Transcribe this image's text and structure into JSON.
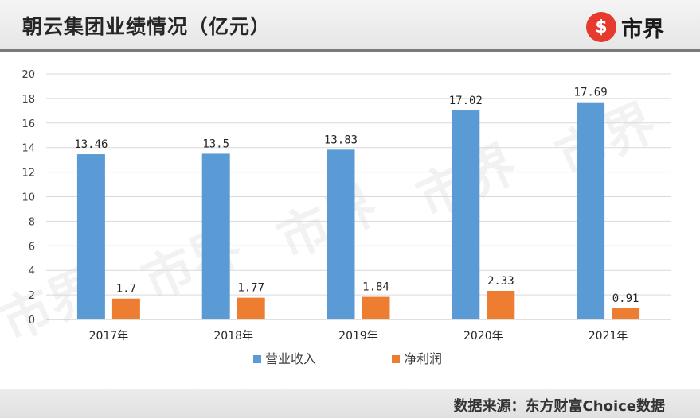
{
  "header": {
    "title": "朝云集团业绩情况（亿元）",
    "logo_icon": "shijie-logo-icon",
    "logo_text": "市界"
  },
  "colors": {
    "series_1": "#5b9bd5",
    "series_2": "#ed7d31",
    "logo_red": "#e63a2e"
  },
  "chart_data": {
    "type": "bar",
    "categories": [
      "2017年",
      "2018年",
      "2019年",
      "2020年",
      "2021年"
    ],
    "series": [
      {
        "name": "营业收入",
        "values": [
          13.46,
          13.5,
          13.83,
          17.02,
          17.69
        ],
        "labels": [
          "13.46",
          "13.5",
          "13.83",
          "17.02",
          "17.69"
        ]
      },
      {
        "name": "净利润",
        "values": [
          1.7,
          1.77,
          1.84,
          2.33,
          0.91
        ],
        "labels": [
          "1.7",
          "1.77",
          "1.84",
          "2.33",
          "0.91"
        ]
      }
    ],
    "ylim": [
      0,
      20
    ],
    "yticks": [
      0,
      2,
      4,
      6,
      8,
      10,
      12,
      14,
      16,
      18,
      20
    ],
    "grid": true,
    "legend": "bottom"
  },
  "watermark": {
    "text": "市界"
  },
  "footer": {
    "source": "数据来源：东方财富Choice数据"
  }
}
